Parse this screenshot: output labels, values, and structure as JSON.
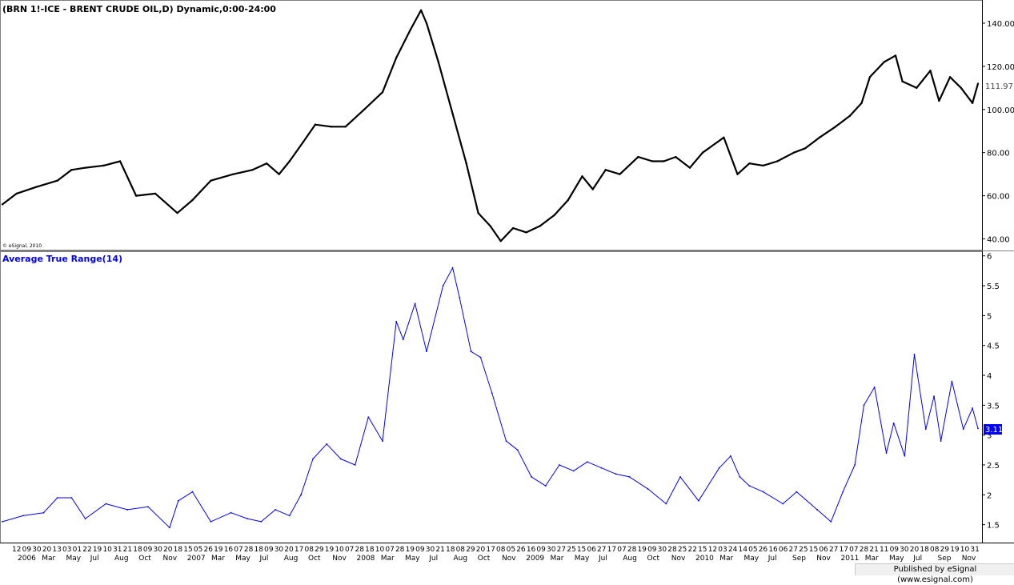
{
  "title": "(BRN 1!-ICE - BRENT CRUDE OIL,D) Dynamic,0:00-24:00",
  "copyright": "© eSignal, 2010",
  "footer": "Published by eSignal (www.esignal.com)",
  "colors": {
    "price": "#000000",
    "atr": "#0000ff",
    "atr_label_bg": "#0000ff",
    "frame": "#808080"
  },
  "chart_data": [
    {
      "type": "line",
      "title": "(BRN 1!-ICE - BRENT CRUDE OIL,D) Dynamic,0:00-24:00",
      "series_style": "daily bars",
      "ylim": [
        35,
        150
      ],
      "y_ticks": [
        "140.00",
        "120.00",
        "100.00",
        "80.00",
        "60.00",
        "40.00"
      ],
      "last_value_label": "111.97",
      "x": [
        "2006-01-01",
        "2006-02-01",
        "2006-03-15",
        "2006-05-01",
        "2006-06-01",
        "2006-07-01",
        "2006-08-10",
        "2006-09-15",
        "2006-10-20",
        "2006-12-01",
        "2007-01-18",
        "2007-02-20",
        "2007-04-01",
        "2007-05-20",
        "2007-07-01",
        "2007-08-01",
        "2007-08-28",
        "2007-09-20",
        "2007-10-20",
        "2007-11-15",
        "2007-12-20",
        "2008-01-20",
        "2008-03-01",
        "2008-04-10",
        "2008-05-10",
        "2008-06-10",
        "2008-07-03",
        "2008-07-15",
        "2008-08-10",
        "2008-09-10",
        "2008-10-10",
        "2008-11-05",
        "2008-12-01",
        "2008-12-24",
        "2009-01-20",
        "2009-02-18",
        "2009-03-20",
        "2009-04-20",
        "2009-05-20",
        "2009-06-20",
        "2009-07-13",
        "2009-08-10",
        "2009-09-10",
        "2009-10-20",
        "2009-11-20",
        "2009-12-15",
        "2010-01-10",
        "2010-02-10",
        "2010-03-10",
        "2010-04-25",
        "2010-05-25",
        "2010-06-20",
        "2010-07-20",
        "2010-08-20",
        "2010-09-25",
        "2010-10-20",
        "2010-11-20",
        "2010-12-25",
        "2011-01-25",
        "2011-02-20",
        "2011-03-10",
        "2011-04-10",
        "2011-05-05",
        "2011-05-20",
        "2011-06-20",
        "2011-07-20",
        "2011-08-08",
        "2011-09-01",
        "2011-09-25",
        "2011-10-20",
        "2011-11-01"
      ],
      "values": [
        56,
        61,
        64,
        67,
        72,
        73,
        74,
        76,
        60,
        61,
        52,
        58,
        67,
        70,
        72,
        75,
        70,
        76,
        85,
        93,
        92,
        92,
        100,
        108,
        124,
        137,
        146,
        140,
        122,
        98,
        75,
        52,
        46,
        39,
        45,
        43,
        46,
        51,
        58,
        69,
        63,
        72,
        70,
        78,
        76,
        76,
        78,
        73,
        80,
        87,
        70,
        75,
        74,
        76,
        80,
        82,
        87,
        92,
        97,
        103,
        115,
        122,
        125,
        113,
        110,
        118,
        104,
        115,
        110,
        103,
        111.97
      ]
    },
    {
      "type": "line",
      "title": "Average True Range(14)",
      "ylim": [
        1.2,
        6.05
      ],
      "y_ticks": [
        "6",
        "5.5",
        "5",
        "4.5",
        "4",
        "3.5",
        "3",
        "2.5",
        "2",
        "1.5"
      ],
      "last_value_label": "3.11",
      "x": [
        "2006-01-01",
        "2006-02-15",
        "2006-04-01",
        "2006-05-01",
        "2006-06-01",
        "2006-07-01",
        "2006-08-15",
        "2006-10-01",
        "2006-11-15",
        "2007-01-01",
        "2007-01-20",
        "2007-02-20",
        "2007-04-01",
        "2007-05-15",
        "2007-06-20",
        "2007-07-20",
        "2007-08-20",
        "2007-09-20",
        "2007-10-15",
        "2007-11-10",
        "2007-12-10",
        "2008-01-10",
        "2008-02-10",
        "2008-03-10",
        "2008-04-10",
        "2008-05-10",
        "2008-05-25",
        "2008-06-20",
        "2008-07-15",
        "2008-08-20",
        "2008-09-10",
        "2008-09-25",
        "2008-10-20",
        "2008-11-10",
        "2008-12-05",
        "2009-01-05",
        "2009-01-30",
        "2009-03-01",
        "2009-04-01",
        "2009-05-01",
        "2009-06-01",
        "2009-07-01",
        "2009-08-01",
        "2009-09-01",
        "2009-10-01",
        "2009-11-10",
        "2009-12-20",
        "2010-01-20",
        "2010-03-01",
        "2010-04-15",
        "2010-05-10",
        "2010-05-30",
        "2010-06-20",
        "2010-07-20",
        "2010-09-01",
        "2010-10-01",
        "2010-11-15",
        "2010-12-15",
        "2011-01-10",
        "2011-02-05",
        "2011-02-25",
        "2011-03-20",
        "2011-04-15",
        "2011-05-01",
        "2011-05-25",
        "2011-06-15",
        "2011-07-10",
        "2011-07-28",
        "2011-08-12",
        "2011-09-05",
        "2011-09-30",
        "2011-10-20",
        "2011-11-01"
      ],
      "values": [
        1.55,
        1.65,
        1.7,
        1.95,
        1.95,
        1.6,
        1.85,
        1.75,
        1.8,
        1.45,
        1.9,
        2.05,
        1.55,
        1.7,
        1.6,
        1.55,
        1.75,
        1.65,
        2.0,
        2.6,
        2.85,
        2.6,
        2.5,
        3.3,
        2.9,
        4.9,
        4.6,
        5.2,
        4.4,
        5.5,
        5.8,
        5.3,
        4.4,
        4.3,
        3.7,
        2.9,
        2.75,
        2.3,
        2.15,
        2.5,
        2.4,
        2.55,
        2.45,
        2.35,
        2.3,
        2.1,
        1.85,
        2.3,
        1.9,
        2.45,
        2.65,
        2.3,
        2.15,
        2.05,
        1.85,
        2.05,
        1.75,
        1.55,
        2.05,
        2.5,
        3.5,
        3.8,
        2.7,
        3.2,
        2.65,
        4.35,
        3.1,
        3.65,
        2.9,
        3.9,
        3.1,
        3.45,
        3.11
      ]
    }
  ],
  "x_axis": {
    "row1": [
      "12",
      "09",
      "30",
      "20",
      "13",
      "03",
      "01",
      "22",
      "19",
      "10",
      "31",
      "21",
      "18",
      "09",
      "30",
      "20",
      "18",
      "15",
      "05",
      "26",
      "19",
      "16",
      "07",
      "28",
      "18",
      "09",
      "30",
      "20",
      "17",
      "08",
      "29",
      "19",
      "10",
      "07",
      "28",
      "18",
      "10",
      "07",
      "28",
      "19",
      "09",
      "30",
      "21",
      "18",
      "08",
      "29",
      "20",
      "17",
      "08",
      "05",
      "26",
      "16",
      "09",
      "30",
      "27",
      "25",
      "15",
      "06",
      "27",
      "17",
      "07",
      "28",
      "19",
      "09",
      "30",
      "28",
      "25",
      "22",
      "15",
      "12",
      "03",
      "24",
      "14",
      "05",
      "26",
      "16",
      "06",
      "27",
      "25",
      "15",
      "06",
      "27",
      "17",
      "07",
      "28",
      "21",
      "11",
      "09",
      "30",
      "20",
      "18",
      "08",
      "29",
      "19",
      "10",
      "31"
    ],
    "row2": [
      "2006",
      "Mar",
      "May",
      "Jul",
      "Aug",
      "Oct",
      "Nov",
      "2007",
      "Mar",
      "May",
      "Jul",
      "Aug",
      "Oct",
      "Nov",
      "2008",
      "Mar",
      "May",
      "Jul",
      "Aug",
      "Oct",
      "Nov",
      "2009",
      "Mar",
      "May",
      "Jul",
      "Aug",
      "Oct",
      "Nov",
      "2010",
      "Mar",
      "May",
      "Jul",
      "Sep",
      "Nov",
      "2011",
      "Mar",
      "May",
      "Jul",
      "Sep",
      "Nov"
    ]
  }
}
